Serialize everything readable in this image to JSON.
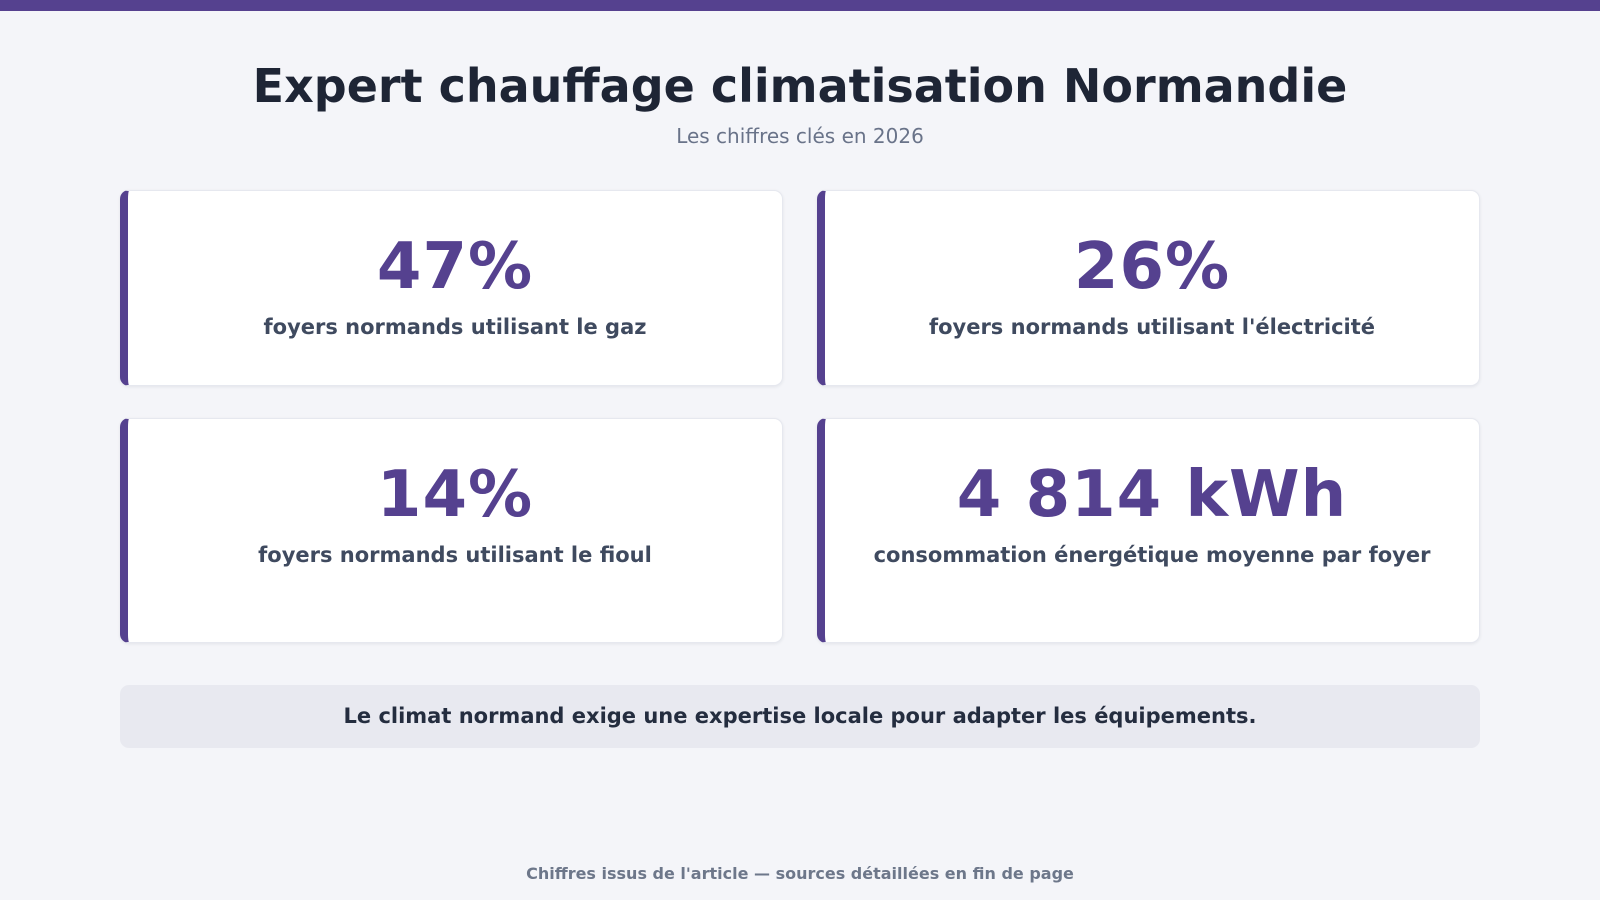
{
  "theme": {
    "accent": "#55418f",
    "background": "#f4f5f9"
  },
  "header": {
    "title": "Expert chauffage climatisation Normandie",
    "subtitle": "Les chiffres clés en 2026"
  },
  "stats": [
    {
      "value": "47%",
      "label": "foyers normands utilisant le gaz"
    },
    {
      "value": "26%",
      "label": "foyers normands utilisant l'électricité"
    },
    {
      "value": "14%",
      "label": "foyers normands utilisant le fioul"
    },
    {
      "value": "4 814 kWh",
      "label": "consommation énergétique moyenne par foyer"
    }
  ],
  "note": "Le climat normand exige une expertise locale pour adapter les équipements.",
  "footer": "Chiffres issus de l'article — sources détaillées en fin de page"
}
